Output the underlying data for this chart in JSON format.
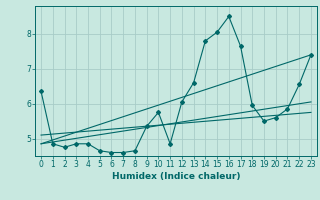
{
  "xlabel": "Humidex (Indice chaleur)",
  "bg_color": "#c8e8e0",
  "grid_color": "#a8ccc8",
  "line_color": "#006868",
  "xlim": [
    -0.5,
    23.5
  ],
  "ylim": [
    4.5,
    8.8
  ],
  "yticks": [
    5,
    6,
    7,
    8
  ],
  "xticks": [
    0,
    1,
    2,
    3,
    4,
    5,
    6,
    7,
    8,
    9,
    10,
    11,
    12,
    13,
    14,
    15,
    16,
    17,
    18,
    19,
    20,
    21,
    22,
    23
  ],
  "line1_x": [
    0,
    1,
    2,
    3,
    4,
    5,
    6,
    7,
    8,
    9,
    10,
    11,
    12,
    13,
    14,
    15,
    16,
    17,
    18,
    19,
    20,
    21,
    22,
    23
  ],
  "line1_y": [
    6.35,
    4.85,
    4.75,
    4.85,
    4.85,
    4.65,
    4.6,
    4.6,
    4.65,
    5.35,
    5.75,
    4.85,
    6.05,
    6.6,
    7.8,
    8.05,
    8.5,
    7.65,
    5.95,
    5.5,
    5.6,
    5.85,
    6.55,
    7.4
  ],
  "line2_x": [
    0,
    23
  ],
  "line2_y": [
    4.85,
    7.4
  ],
  "line3_x": [
    0,
    23
  ],
  "line3_y": [
    4.85,
    6.05
  ],
  "line4_x": [
    0,
    23
  ],
  "line4_y": [
    5.1,
    5.75
  ],
  "xlabel_fontsize": 6.5,
  "tick_fontsize": 5.5,
  "marker_size": 2.0,
  "linewidth": 0.8
}
